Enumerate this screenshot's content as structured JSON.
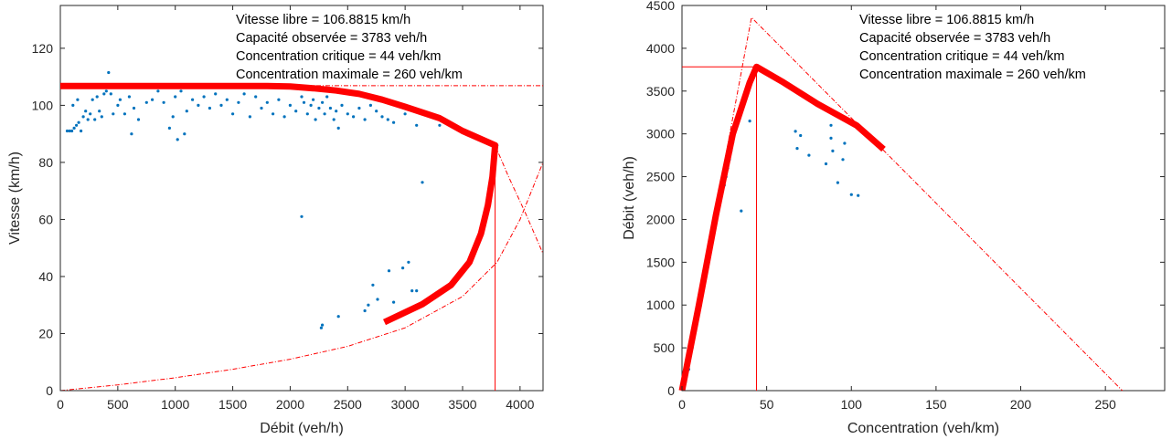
{
  "charts": [
    {
      "id": "left",
      "type": "scatter",
      "xlabel": "Débit (veh/h)",
      "ylabel": "Vitesse (km/h)",
      "xlim": [
        0,
        4200
      ],
      "ylim": [
        0,
        135
      ],
      "xticks": [
        "0",
        "500",
        "1000",
        "1500",
        "2000",
        "2500",
        "3000",
        "3500",
        "4000"
      ],
      "yticks": [
        "0",
        "20",
        "40",
        "60",
        "80",
        "100",
        "120"
      ],
      "annotations": [
        "Vitesse libre = 106.8815 km/h",
        "Capacité observée = 3783 veh/h",
        "Concentration critique = 44 veh/km",
        "Concentration maximale = 260 veh/km"
      ]
    },
    {
      "id": "right",
      "type": "scatter",
      "xlabel": "Concentration (veh/km)",
      "ylabel": "Débit (veh/h)",
      "xlim": [
        0,
        285
      ],
      "ylim": [
        0,
        4500
      ],
      "xticks": [
        "0",
        "50",
        "100",
        "150",
        "200",
        "250"
      ],
      "yticks": [
        "0",
        "500",
        "1000",
        "1500",
        "2000",
        "2500",
        "3000",
        "3500",
        "4000",
        "4500"
      ],
      "annotations": [
        "Vitesse libre = 106.8815 km/h",
        "Capacité observée = 3783 veh/h",
        "Concentration critique = 44 veh/km",
        "Concentration maximale = 260 veh/km"
      ]
    }
  ],
  "chart_data": [
    {
      "type": "scatter",
      "xlabel": "Débit (veh/h)",
      "ylabel": "Vitesse (km/h)",
      "xlim": [
        0,
        4200
      ],
      "ylim": [
        0,
        135
      ],
      "grid": false,
      "colors": {
        "points": "#0072BD",
        "model": "#FF0000"
      },
      "series": [
        {
          "points": [
            [
              60,
              91
            ],
            [
              80,
              91
            ],
            [
              100,
              91
            ],
            [
              120,
              92
            ],
            [
              140,
              93
            ],
            [
              160,
              94
            ],
            [
              180,
              91
            ],
            [
              200,
              96
            ],
            [
              110,
              100
            ],
            [
              150,
              102
            ],
            [
              220,
              98
            ],
            [
              240,
              95
            ],
            [
              260,
              97
            ],
            [
              280,
              102
            ],
            [
              300,
              95
            ],
            [
              320,
              103
            ],
            [
              340,
              98
            ],
            [
              360,
              96
            ],
            [
              380,
              104
            ],
            [
              400,
              105
            ],
            [
              420,
              111.5
            ],
            [
              440,
              104
            ],
            [
              460,
              97
            ],
            [
              500,
              100
            ],
            [
              520,
              102
            ],
            [
              560,
              97
            ],
            [
              600,
              103
            ],
            [
              620,
              90
            ],
            [
              640,
              99
            ],
            [
              680,
              95
            ],
            [
              750,
              101
            ],
            [
              800,
              102
            ],
            [
              850,
              105
            ],
            [
              900,
              101
            ],
            [
              950,
              92
            ],
            [
              980,
              96
            ],
            [
              1000,
              103
            ],
            [
              1020,
              88
            ],
            [
              1050,
              105
            ],
            [
              1080,
              90
            ],
            [
              1100,
              98
            ],
            [
              1150,
              102
            ],
            [
              1200,
              100
            ],
            [
              1250,
              103
            ],
            [
              1300,
              99
            ],
            [
              1350,
              104
            ],
            [
              1400,
              100
            ],
            [
              1450,
              102
            ],
            [
              1500,
              97
            ],
            [
              1550,
              101
            ],
            [
              1600,
              104
            ],
            [
              1650,
              96
            ],
            [
              1700,
              103
            ],
            [
              1750,
              99
            ],
            [
              1800,
              101
            ],
            [
              1850,
              97
            ],
            [
              1870,
              107
            ],
            [
              1900,
              102
            ],
            [
              1950,
              96
            ],
            [
              2000,
              100
            ],
            [
              2050,
              98
            ],
            [
              2100,
              103
            ],
            [
              2120,
              101
            ],
            [
              2150,
              97
            ],
            [
              2180,
              100
            ],
            [
              2200,
              102
            ],
            [
              2220,
              95
            ],
            [
              2250,
              99
            ],
            [
              2280,
              101
            ],
            [
              2300,
              97
            ],
            [
              2320,
              103
            ],
            [
              2350,
              99
            ],
            [
              2380,
              95
            ],
            [
              2400,
              98
            ],
            [
              2420,
              92
            ],
            [
              2450,
              100
            ],
            [
              2500,
              97
            ],
            [
              2550,
              96
            ],
            [
              2600,
              99
            ],
            [
              2650,
              95
            ],
            [
              2700,
              100
            ],
            [
              2750,
              98
            ],
            [
              2800,
              96
            ],
            [
              2850,
              95
            ],
            [
              2900,
              94
            ],
            [
              3000,
              97
            ],
            [
              3100,
              93
            ],
            [
              3300,
              93
            ],
            [
              3800,
              86
            ],
            [
              2100,
              61
            ],
            [
              3150,
              73
            ],
            [
              2270,
              22
            ],
            [
              2280,
              23
            ],
            [
              2420,
              26
            ],
            [
              2650,
              28
            ],
            [
              2680,
              30
            ],
            [
              2760,
              32
            ],
            [
              2720,
              37
            ],
            [
              2860,
              42
            ],
            [
              2900,
              31
            ],
            [
              2980,
              43
            ],
            [
              3030,
              45
            ],
            [
              3060,
              35
            ],
            [
              3100,
              35
            ]
          ]
        }
      ],
      "model_curve": [
        [
          0,
          106.8
        ],
        [
          1600,
          106.8
        ],
        [
          1800,
          106.8
        ],
        [
          2000,
          106.6
        ],
        [
          2200,
          106.0
        ],
        [
          2400,
          105.2
        ],
        [
          2600,
          104
        ],
        [
          2800,
          102
        ],
        [
          3000,
          99.5
        ],
        [
          3300,
          95.5
        ],
        [
          3500,
          91
        ],
        [
          3783,
          86
        ],
        [
          3760,
          75
        ],
        [
          3720,
          65
        ],
        [
          3660,
          55
        ],
        [
          3560,
          45
        ],
        [
          3400,
          37
        ],
        [
          3150,
          30.3
        ],
        [
          2820,
          24
        ]
      ],
      "dashed_curve": [
        [
          0,
          0
        ],
        [
          500,
          2
        ],
        [
          1000,
          4.5
        ],
        [
          1500,
          7.5
        ],
        [
          2000,
          11
        ],
        [
          2500,
          15.5
        ],
        [
          3000,
          22
        ],
        [
          3500,
          33
        ],
        [
          3800,
          45
        ],
        [
          4000,
          60
        ],
        [
          4200,
          80
        ]
      ],
      "dashed_curve2": [
        [
          3783,
          86
        ],
        [
          3900,
          75
        ],
        [
          4050,
          62
        ],
        [
          4200,
          48
        ]
      ],
      "free_speed": 106.8815,
      "capacity": 3783
    },
    {
      "type": "scatter",
      "xlabel": "Concentration (veh/km)",
      "ylabel": "Débit (veh/h)",
      "xlim": [
        0,
        285
      ],
      "ylim": [
        0,
        4500
      ],
      "grid": false,
      "colors": {
        "points": "#0072BD",
        "model": "#FF0000"
      },
      "series": [
        {
          "points": [
            [
              2,
              100
            ],
            [
              4,
              250
            ],
            [
              6,
              500
            ],
            [
              8,
              700
            ],
            [
              10,
              900
            ],
            [
              11,
              1000
            ],
            [
              12,
              1150
            ],
            [
              13,
              1300
            ],
            [
              14,
              1450
            ],
            [
              15,
              1550
            ],
            [
              16,
              1700
            ],
            [
              17,
              1800
            ],
            [
              18,
              1900
            ],
            [
              19,
              2000
            ],
            [
              20,
              2100
            ],
            [
              21,
              2150
            ],
            [
              22,
              2200
            ],
            [
              23,
              2300
            ],
            [
              24,
              2350
            ],
            [
              25,
              2400
            ],
            [
              26,
              2500
            ],
            [
              27,
              2600
            ],
            [
              28,
              2700
            ],
            [
              29,
              2800
            ],
            [
              30,
              2900
            ],
            [
              31,
              3000
            ],
            [
              32,
              3100
            ],
            [
              35,
              2100
            ],
            [
              40,
              3150
            ],
            [
              42,
              3700
            ],
            [
              44,
              3800
            ],
            [
              67,
              3030
            ],
            [
              68,
              2830
            ],
            [
              70,
              2980
            ],
            [
              75,
              2750
            ],
            [
              85,
              2650
            ],
            [
              88,
              3100
            ],
            [
              88,
              2950
            ],
            [
              89,
              2800
            ],
            [
              92,
              2430
            ],
            [
              95,
              2700
            ],
            [
              96,
              2890
            ],
            [
              100,
              2290
            ],
            [
              104,
              2280
            ]
          ]
        }
      ],
      "model_curve": [
        [
          0,
          0
        ],
        [
          10,
          1000
        ],
        [
          20,
          2050
        ],
        [
          30,
          3000
        ],
        [
          40,
          3600
        ],
        [
          44,
          3783
        ],
        [
          60,
          3600
        ],
        [
          80,
          3350
        ],
        [
          103,
          3100
        ],
        [
          119,
          2820
        ]
      ],
      "dashed_curve": [
        [
          0,
          0
        ],
        [
          41,
          4360
        ],
        [
          260,
          0
        ]
      ],
      "critical_concentration": 44,
      "capacity": 3783
    }
  ]
}
